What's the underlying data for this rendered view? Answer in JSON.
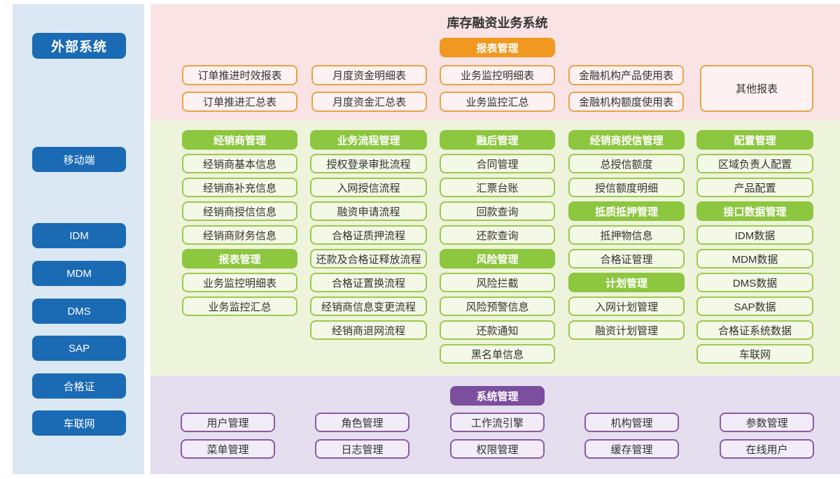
{
  "title": "库存融资业务系统",
  "colors": {
    "text": "#333333",
    "blue": "#1a6ab4",
    "sidebarBg": "#dbe8f3",
    "pinkBg": "#fae3e4",
    "pinkBoxBg": "#fdf2f1",
    "orange": "#f0981f",
    "orangeBorder": "#e8a24a",
    "greenBg": "#eef3dc",
    "green": "#8dc63f",
    "greenBoxBg": "#f4f8e6",
    "greenBorder": "#9cca4e",
    "purpleBg": "#e5deef",
    "purpleHdr": "#7b4f9e",
    "purpleBoxBg": "#f1ecf7",
    "purpleBorder": "#8a5ba6"
  },
  "sidebar": {
    "header": "外部系统",
    "items": [
      "移动端",
      "IDM",
      "MDM",
      "DMS",
      "SAP",
      "合格证",
      "车联网"
    ]
  },
  "reports": {
    "header": "报表管理",
    "columns": [
      [
        "订单推进时效报表",
        "订单推进汇总表"
      ],
      [
        "月度资金明细表",
        "月度资金汇总表"
      ],
      [
        "业务监控明细表",
        "业务监控汇总"
      ],
      [
        "金融机构产品使用表",
        "金融机构额度使用表"
      ]
    ],
    "other": "其他报表"
  },
  "modules": {
    "columns": [
      {
        "blocks": [
          {
            "header": "经销商管理",
            "items": [
              "经销商基本信息",
              "经销商补充信息",
              "经销商授信信息",
              "经销商财务信息"
            ]
          },
          {
            "header": "报表管理",
            "items": [
              "业务监控明细表",
              "业务监控汇总"
            ]
          }
        ]
      },
      {
        "blocks": [
          {
            "header": "业务流程管理",
            "items": [
              "授权登录审批流程",
              "入网授信流程",
              "融资申请流程",
              "合格证质押流程",
              "还款及合格证释放流程",
              "合格证置换流程",
              "经销商信息变更流程",
              "经销商退网流程"
            ]
          }
        ]
      },
      {
        "blocks": [
          {
            "header": "融后管理",
            "items": [
              "合同管理",
              "汇票台账",
              "回款查询",
              "还款查询"
            ]
          },
          {
            "header": "风险管理",
            "items": [
              "风险拦截",
              "风险预警信息",
              "还款通知",
              "黑名单信息"
            ]
          }
        ]
      },
      {
        "blocks": [
          {
            "header": "经销商授信管理",
            "items": [
              "总授信额度",
              "授信额度明细"
            ]
          },
          {
            "header": "抵质抵押管理",
            "items": [
              "抵押物信息",
              "合格证管理"
            ]
          },
          {
            "header": "计划管理",
            "items": [
              "入网计划管理",
              "融资计划管理"
            ]
          }
        ]
      },
      {
        "blocks": [
          {
            "header": "配置管理",
            "items": [
              "区域负责人配置",
              "产品配置"
            ]
          },
          {
            "header": "接口数据管理",
            "items": [
              "IDM数据",
              "MDM数据",
              "DMS数据",
              "SAP数据",
              "合格证系统数据",
              "车联网"
            ]
          }
        ]
      }
    ]
  },
  "system": {
    "header": "系统管理",
    "columns": [
      [
        "用户管理",
        "菜单管理"
      ],
      [
        "角色管理",
        "日志管理"
      ],
      [
        "工作流引擎",
        "权限管理"
      ],
      [
        "机构管理",
        "缓存管理"
      ],
      [
        "参数管理",
        "在线用户"
      ]
    ]
  }
}
